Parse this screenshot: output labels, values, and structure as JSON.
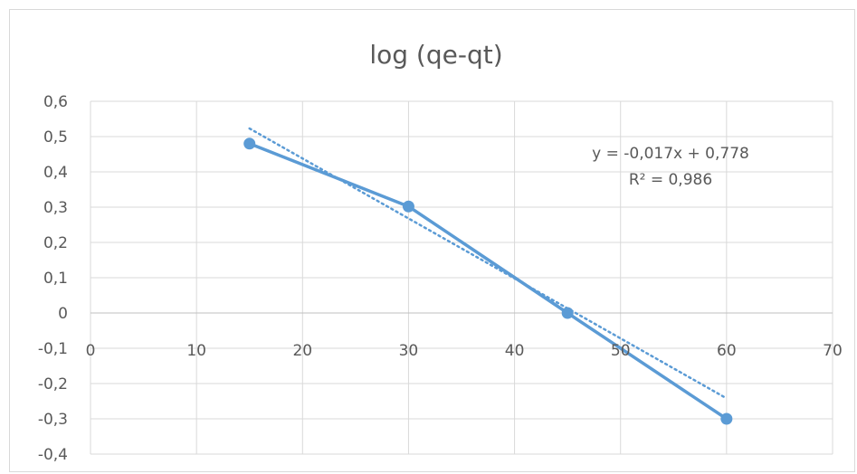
{
  "chart_data": {
    "type": "scatter",
    "title": "log (qe-qt)",
    "xlabel": "",
    "ylabel": "",
    "xlim": [
      0,
      70
    ],
    "ylim": [
      -0.4,
      0.6
    ],
    "x_ticks": [
      0,
      10,
      20,
      30,
      40,
      50,
      60,
      70
    ],
    "x_tick_labels": [
      "0",
      "10",
      "20",
      "30",
      "40",
      "50",
      "60",
      "70"
    ],
    "y_ticks": [
      0.6,
      0.5,
      0.4,
      0.3,
      0.2,
      0.1,
      0,
      -0.1,
      -0.2,
      -0.3,
      -0.4
    ],
    "y_tick_labels": [
      "0,6",
      "0,5",
      "0,4",
      "0,3",
      "0,2",
      "0,1",
      "0",
      "-0,1",
      "-0,2",
      "-0,3",
      "-0,4"
    ],
    "grid": true,
    "series": [
      {
        "x": [
          15,
          30,
          45,
          60
        ],
        "y": [
          0.48,
          0.302,
          0.0,
          -0.3
        ],
        "color": "#5b9bd5",
        "style": "line-with-markers"
      }
    ],
    "trendline": {
      "type": "linear",
      "slope": -0.017,
      "intercept": 0.778,
      "x_range": [
        15,
        60
      ],
      "style": "dotted",
      "color": "#5b9bd5",
      "equation_label": "y = -0,017x + 0,778",
      "r2_label": "R² = 0,986"
    }
  }
}
